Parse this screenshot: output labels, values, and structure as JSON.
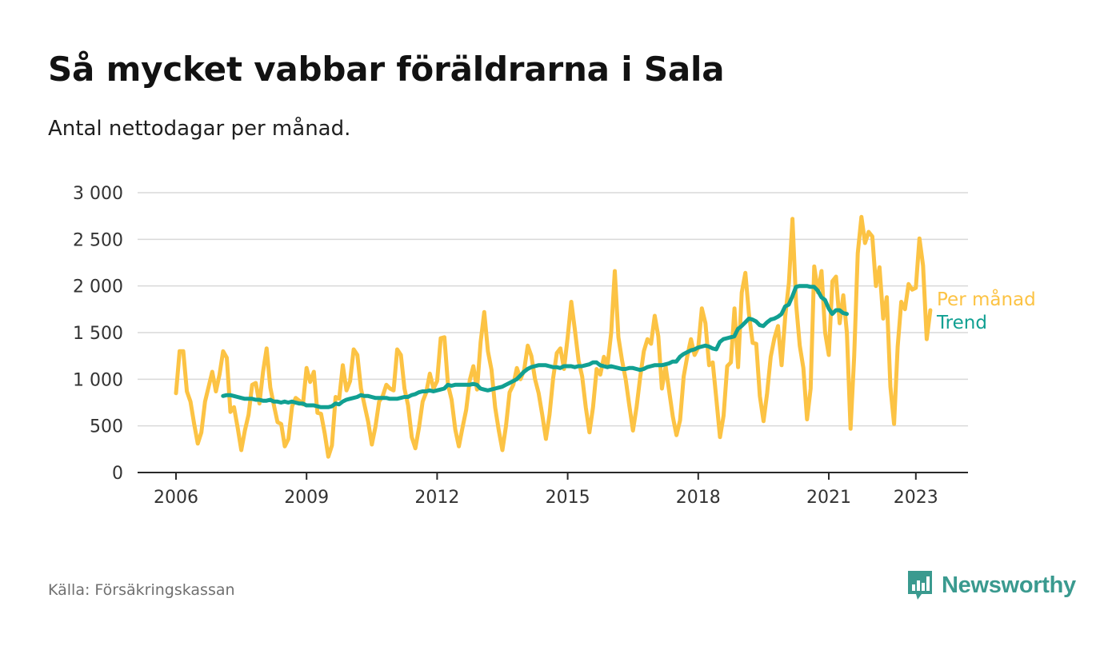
{
  "title": "Så mycket vabbar föräldrarna i Sala",
  "subtitle": "Antal nettodagar per månad.",
  "source": "Källa: Försäkringskassan",
  "brand": {
    "name": "Newsworthy",
    "icon": "newsworthy-logo-icon",
    "color": "#3a9a8f"
  },
  "chart_data": {
    "type": "line",
    "x_unit": "year",
    "x_ticks": [
      2006,
      2009,
      2012,
      2015,
      2018,
      2021,
      2023
    ],
    "y_ticks": [
      0,
      500,
      1000,
      1500,
      2000,
      2500,
      3000
    ],
    "y_tick_labels": [
      "0",
      "500",
      "1 000",
      "1 500",
      "2 000",
      "2 500",
      "3 000"
    ],
    "ylim": [
      0,
      3000
    ],
    "xlim": [
      2005.6,
      2024.7
    ],
    "grid": "horizontal",
    "legend": "inline-right",
    "series": [
      {
        "name": "Per månad",
        "color": "#fcc344",
        "start": 2006.0,
        "step": 0.08333,
        "values": [
          850,
          1300,
          1300,
          870,
          760,
          520,
          310,
          430,
          760,
          920,
          1080,
          870,
          1050,
          1300,
          1230,
          650,
          700,
          480,
          240,
          450,
          620,
          940,
          960,
          740,
          1080,
          1330,
          910,
          720,
          540,
          520,
          280,
          360,
          710,
          800,
          770,
          730,
          1120,
          970,
          1080,
          640,
          630,
          420,
          170,
          290,
          810,
          790,
          1150,
          880,
          980,
          1320,
          1260,
          900,
          720,
          540,
          300,
          490,
          760,
          820,
          940,
          900,
          880,
          1320,
          1260,
          900,
          720,
          380,
          260,
          480,
          760,
          860,
          1060,
          900,
          980,
          1440,
          1450,
          940,
          780,
          460,
          280,
          480,
          670,
          990,
          1140,
          890,
          1400,
          1720,
          1300,
          1100,
          700,
          450,
          240,
          500,
          860,
          940,
          1120,
          1000,
          1100,
          1360,
          1250,
          1000,
          850,
          620,
          360,
          620,
          1010,
          1280,
          1330,
          1110,
          1450,
          1830,
          1530,
          1200,
          1030,
          700,
          430,
          700,
          1110,
          1050,
          1240,
          1150,
          1500,
          2160,
          1450,
          1200,
          1000,
          720,
          450,
          700,
          1020,
          1300,
          1430,
          1380,
          1680,
          1460,
          900,
          1140,
          870,
          600,
          400,
          560,
          1030,
          1250,
          1430,
          1260,
          1340,
          1760,
          1600,
          1150,
          1180,
          790,
          380,
          610,
          1140,
          1180,
          1760,
          1130,
          1930,
          2140,
          1700,
          1390,
          1380,
          820,
          550,
          850,
          1240,
          1440,
          1570,
          1150,
          1680,
          2030,
          2720,
          1800,
          1360,
          1120,
          570,
          900,
          2210,
          1930,
          2160,
          1500,
          1260,
          2050,
          2100,
          1600,
          1900,
          1500,
          470,
          1240,
          2350,
          2740,
          2460,
          2580,
          2530,
          2000,
          2200,
          1650,
          1880,
          920,
          520,
          1350,
          1830,
          1750,
          2020,
          1960,
          1980,
          2510,
          2220,
          1430,
          1740
        ]
      },
      {
        "name": "Trend",
        "color": "#11a092",
        "start": 2007.08,
        "step": 0.08333,
        "values": [
          820,
          830,
          830,
          820,
          810,
          800,
          790,
          790,
          790,
          780,
          780,
          770,
          770,
          780,
          760,
          760,
          750,
          760,
          750,
          760,
          750,
          740,
          740,
          720,
          720,
          720,
          710,
          700,
          700,
          700,
          710,
          740,
          730,
          760,
          780,
          790,
          800,
          810,
          830,
          820,
          820,
          810,
          800,
          800,
          800,
          800,
          790,
          790,
          790,
          800,
          810,
          810,
          830,
          840,
          860,
          870,
          870,
          880,
          870,
          880,
          890,
          900,
          940,
          930,
          940,
          940,
          940,
          940,
          940,
          950,
          940,
          900,
          890,
          880,
          890,
          900,
          910,
          920,
          940,
          960,
          980,
          1000,
          1040,
          1080,
          1110,
          1130,
          1140,
          1150,
          1150,
          1150,
          1140,
          1130,
          1130,
          1120,
          1140,
          1140,
          1140,
          1130,
          1140,
          1140,
          1150,
          1160,
          1180,
          1180,
          1150,
          1140,
          1130,
          1140,
          1130,
          1120,
          1110,
          1110,
          1120,
          1120,
          1110,
          1100,
          1110,
          1130,
          1140,
          1150,
          1150,
          1150,
          1160,
          1170,
          1190,
          1190,
          1240,
          1270,
          1290,
          1310,
          1320,
          1340,
          1350,
          1360,
          1350,
          1330,
          1320,
          1400,
          1430,
          1440,
          1450,
          1460,
          1540,
          1570,
          1610,
          1650,
          1640,
          1620,
          1580,
          1570,
          1610,
          1640,
          1650,
          1670,
          1700,
          1780,
          1800,
          1890,
          1990,
          2000,
          2000,
          2000,
          1990,
          1990,
          1950,
          1880,
          1850,
          1760,
          1700,
          1740,
          1740,
          1710,
          1700
        ]
      }
    ]
  }
}
